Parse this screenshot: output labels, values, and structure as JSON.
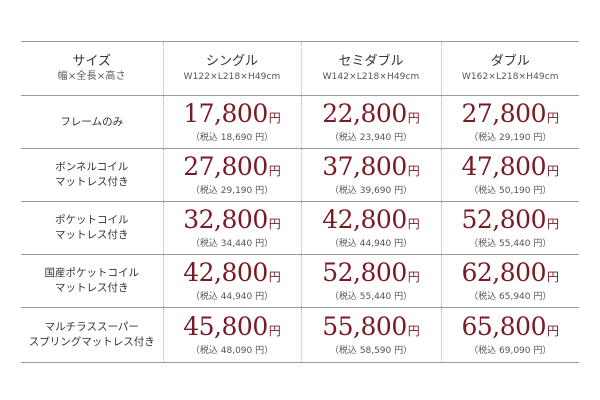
{
  "header": {
    "size": {
      "title": "サイズ",
      "subtitle": "幅×全長×高さ"
    },
    "columns": [
      {
        "name": "シングル",
        "dims": "W122×L218×H49cm"
      },
      {
        "name": "セミダブル",
        "dims": "W142×L218×H49cm"
      },
      {
        "name": "ダブル",
        "dims": "W162×L218×H49cm"
      }
    ]
  },
  "rows": [
    {
      "label_lines": [
        "フレームのみ"
      ],
      "prices": [
        {
          "price": "17,800",
          "yen": "円",
          "tax": "（税込 18,690 円）"
        },
        {
          "price": "22,800",
          "yen": "円",
          "tax": "（税込 23,940 円）"
        },
        {
          "price": "27,800",
          "yen": "円",
          "tax": "（税込 29,190 円）"
        }
      ]
    },
    {
      "label_lines": [
        "ボンネルコイル",
        "マットレス付き"
      ],
      "prices": [
        {
          "price": "27,800",
          "yen": "円",
          "tax": "（税込 29,190 円）"
        },
        {
          "price": "37,800",
          "yen": "円",
          "tax": "（税込 39,690 円）"
        },
        {
          "price": "47,800",
          "yen": "円",
          "tax": "（税込 50,190 円）"
        }
      ]
    },
    {
      "label_lines": [
        "ポケットコイル",
        "マットレス付き"
      ],
      "prices": [
        {
          "price": "32,800",
          "yen": "円",
          "tax": "（税込 34,440 円）"
        },
        {
          "price": "42,800",
          "yen": "円",
          "tax": "（税込 44,940 円）"
        },
        {
          "price": "52,800",
          "yen": "円",
          "tax": "（税込 55,440 円）"
        }
      ]
    },
    {
      "label_lines": [
        "国産ポケットコイル",
        "マットレス付き"
      ],
      "prices": [
        {
          "price": "42,800",
          "yen": "円",
          "tax": "（税込 44,940 円）"
        },
        {
          "price": "52,800",
          "yen": "円",
          "tax": "（税込 55,440 円）"
        },
        {
          "price": "62,800",
          "yen": "円",
          "tax": "（税込 65,940 円）"
        }
      ]
    },
    {
      "label_lines": [
        "マルチラススーパー",
        "スプリングマットレス付き"
      ],
      "prices": [
        {
          "price": "45,800",
          "yen": "円",
          "tax": "（税込 48,090 円）"
        },
        {
          "price": "55,800",
          "yen": "円",
          "tax": "（税込 58,590 円）"
        },
        {
          "price": "65,800",
          "yen": "円",
          "tax": "（税込 69,090 円）"
        }
      ]
    }
  ],
  "colors": {
    "price": "#7a1a24",
    "text": "#333333",
    "rule": "#9a9a9a"
  }
}
